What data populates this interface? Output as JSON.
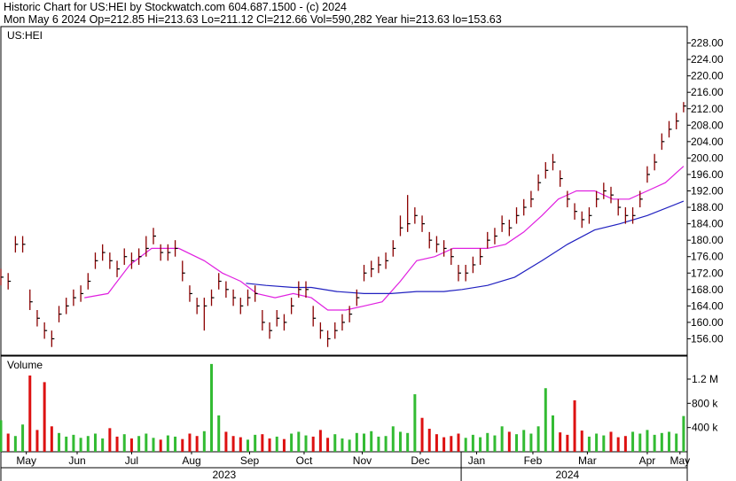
{
  "header": {
    "line1": "Historic Chart for US:HEI by Stockwatch.com 604.687.1500 - (c) 2024",
    "line2": "Mon May  6 2024   Op=212.85   Hi=213.63   Lo=211.12   Cl=212.66   Vol=590,282   Year hi=213.63   lo=153.63"
  },
  "chart_data": [
    {
      "type": "ohlc",
      "label": "US:HEI",
      "color": "#8b0000",
      "x": [
        0,
        4,
        8,
        12,
        16,
        20,
        24,
        28,
        32,
        36,
        40,
        44,
        48,
        52,
        56,
        60,
        64,
        68,
        72,
        76,
        80,
        84,
        88,
        92,
        96,
        100,
        104,
        108,
        112,
        116,
        120,
        124,
        128,
        132,
        136,
        140,
        144,
        148,
        152,
        156,
        160,
        164,
        168,
        172,
        176,
        180,
        184,
        188,
        192,
        196,
        200,
        204,
        208,
        212,
        216,
        220,
        224,
        228,
        232,
        236,
        240,
        244,
        248,
        252,
        256,
        260,
        264,
        268,
        272,
        276,
        280,
        284,
        288,
        292,
        296,
        300,
        304,
        308,
        312,
        316,
        320,
        324,
        328,
        332,
        336,
        340,
        344,
        348,
        352,
        356,
        360,
        364,
        368,
        372,
        376
      ],
      "high": [
        173,
        172,
        181,
        181,
        168,
        163,
        160,
        158,
        164,
        166,
        168,
        169,
        172,
        177,
        179,
        177,
        175,
        178,
        177,
        178,
        181,
        183,
        179,
        179,
        180,
        175,
        169,
        166,
        166,
        168,
        172,
        170,
        168,
        166,
        168,
        169,
        163,
        160,
        163,
        162,
        166,
        170,
        170,
        164,
        160,
        158,
        160,
        162,
        164,
        168,
        174,
        175,
        176,
        177,
        180,
        186,
        191,
        188,
        186,
        182,
        181,
        180,
        178,
        174,
        174,
        176,
        178,
        182,
        183,
        186,
        185,
        188,
        190,
        192,
        196,
        199,
        201,
        197,
        192,
        189,
        187,
        188,
        192,
        194,
        193,
        190,
        188,
        188,
        192,
        198,
        201,
        206,
        209,
        211,
        213.63
      ],
      "low": [
        169,
        168,
        177,
        177,
        163,
        159,
        156,
        154,
        160,
        162,
        164,
        165,
        168,
        173,
        175,
        173,
        171,
        174,
        173,
        174,
        176,
        179,
        175,
        175,
        176,
        170,
        165,
        162,
        158,
        164,
        168,
        166,
        164,
        162,
        164,
        165,
        158,
        156,
        159,
        158,
        162,
        166,
        166,
        159,
        156,
        154,
        156,
        158,
        160,
        164,
        170,
        171,
        172,
        173,
        176,
        181,
        182,
        184,
        182,
        178,
        177,
        176,
        174,
        170,
        170,
        172,
        174,
        178,
        179,
        182,
        181,
        184,
        186,
        188,
        192,
        195,
        197,
        193,
        188,
        185,
        183,
        184,
        188,
        190,
        189,
        186,
        184,
        184,
        188,
        194,
        197,
        202,
        205,
        207,
        211.12
      ],
      "close": [
        171,
        170,
        179,
        179,
        165,
        161,
        158,
        156,
        162,
        164,
        166,
        167,
        170,
        175,
        177,
        175,
        173,
        176,
        175,
        176,
        178,
        181,
        177,
        177,
        178,
        172,
        167,
        164,
        164,
        166,
        170,
        168,
        166,
        164,
        166,
        167,
        160,
        158,
        161,
        160,
        164,
        168,
        168,
        161,
        158,
        156,
        158,
        160,
        162,
        166,
        172,
        173,
        174,
        175,
        178,
        183,
        184,
        186,
        184,
        180,
        179,
        178,
        176,
        172,
        172,
        174,
        176,
        180,
        181,
        184,
        183,
        186,
        188,
        190,
        194,
        197,
        199,
        195,
        190,
        187,
        185,
        186,
        190,
        192,
        191,
        188,
        186,
        186,
        190,
        196,
        199,
        204,
        207,
        209,
        212.66
      ],
      "series": [
        {
          "color": "#e020e0",
          "x": [
            46,
            59,
            71,
            83,
            98,
            112,
            122,
            132,
            141,
            151,
            161,
            171,
            180,
            190,
            200,
            210,
            220,
            229,
            239,
            249,
            259,
            268,
            278,
            288,
            298,
            307,
            317,
            327,
            337,
            346,
            356,
            366,
            376
          ],
          "values": [
            166,
            167,
            174,
            178,
            178,
            175,
            172,
            170,
            167,
            166,
            167,
            166,
            163,
            163,
            164,
            165,
            170,
            175,
            176,
            178,
            178,
            178,
            179,
            182,
            186,
            190,
            192,
            192,
            190,
            190,
            192,
            194,
            198
          ]
        },
        {
          "color": "#2020c0",
          "x": [
            135,
            146,
            161,
            171,
            185,
            200,
            215,
            229,
            244,
            254,
            268,
            283,
            298,
            312,
            327,
            341,
            356,
            376
          ],
          "values": [
            169.5,
            169,
            168.5,
            168.5,
            167.5,
            167,
            167,
            167.5,
            167.5,
            168,
            169,
            171,
            175,
            179,
            182.5,
            184,
            186,
            189.5
          ]
        }
      ],
      "xlim": [
        0,
        378
      ],
      "ylim": [
        152,
        232
      ],
      "yticks": [
        {
          "value": 156,
          "label": "156.00"
        },
        {
          "value": 160,
          "label": "160.00"
        },
        {
          "value": 164,
          "label": "164.00"
        },
        {
          "value": 168,
          "label": "168.00"
        },
        {
          "value": 172,
          "label": "172.00"
        },
        {
          "value": 176,
          "label": "176.00"
        },
        {
          "value": 180,
          "label": "180.00"
        },
        {
          "value": 184,
          "label": "184.00"
        },
        {
          "value": 188,
          "label": "188.00"
        },
        {
          "value": 192,
          "label": "192.00"
        },
        {
          "value": 196,
          "label": "196.00"
        },
        {
          "value": 200,
          "label": "200.00"
        },
        {
          "value": 204,
          "label": "204.00"
        },
        {
          "value": 208,
          "label": "208.00"
        },
        {
          "value": 212,
          "label": "212.00"
        },
        {
          "value": 216,
          "label": "216.00"
        },
        {
          "value": 220,
          "label": "220.00"
        },
        {
          "value": 224,
          "label": "224.00"
        },
        {
          "value": 228,
          "label": "228.00"
        }
      ]
    },
    {
      "type": "volume",
      "label": "Volume",
      "up_color": "#33bb33",
      "down_color": "#dd1111",
      "values": [
        520000,
        300000,
        260000,
        450000,
        1260000,
        360000,
        1150000,
        420000,
        310000,
        250000,
        280000,
        230000,
        260000,
        300000,
        220000,
        390000,
        250000,
        290000,
        220000,
        260000,
        300000,
        230000,
        200000,
        270000,
        250000,
        210000,
        300000,
        260000,
        340000,
        1450000,
        600000,
        330000,
        260000,
        240000,
        200000,
        280000,
        290000,
        220000,
        250000,
        210000,
        300000,
        330000,
        270000,
        250000,
        360000,
        230000,
        290000,
        220000,
        200000,
        310000,
        300000,
        340000,
        250000,
        260000,
        420000,
        330000,
        310000,
        950000,
        560000,
        380000,
        290000,
        240000,
        260000,
        300000,
        230000,
        280000,
        240000,
        310000,
        270000,
        420000,
        330000,
        290000,
        360000,
        300000,
        420000,
        1050000,
        600000,
        320000,
        280000,
        850000,
        350000,
        250000,
        300000,
        270000,
        330000,
        240000,
        260000,
        330000,
        300000,
        360000,
        280000,
        310000,
        330000,
        300000,
        590282
      ],
      "xlim": [
        0,
        378
      ],
      "ylim": [
        0,
        1580000
      ],
      "yticks": [
        {
          "value": 400000,
          "label": "400 k"
        },
        {
          "value": 800000,
          "label": "800 k"
        },
        {
          "value": 1200000,
          "label": "1.2 M"
        }
      ],
      "xticks": [
        {
          "value": 14,
          "label": "May"
        },
        {
          "value": 42,
          "label": "Jun"
        },
        {
          "value": 72,
          "label": "Jul"
        },
        {
          "value": 105,
          "label": "Aug"
        },
        {
          "value": 137,
          "label": "Sep"
        },
        {
          "value": 167,
          "label": "Oct"
        },
        {
          "value": 199,
          "label": "Nov"
        },
        {
          "value": 231,
          "label": "Dec"
        },
        {
          "value": 262,
          "label": "Jan"
        },
        {
          "value": 293,
          "label": "Feb"
        },
        {
          "value": 323,
          "label": "Mar"
        },
        {
          "value": 356,
          "label": "Apr"
        },
        {
          "value": 374,
          "label": "May"
        }
      ],
      "years": [
        {
          "value": 123,
          "label": "2023"
        },
        {
          "value": 312,
          "label": "2024"
        }
      ]
    }
  ]
}
